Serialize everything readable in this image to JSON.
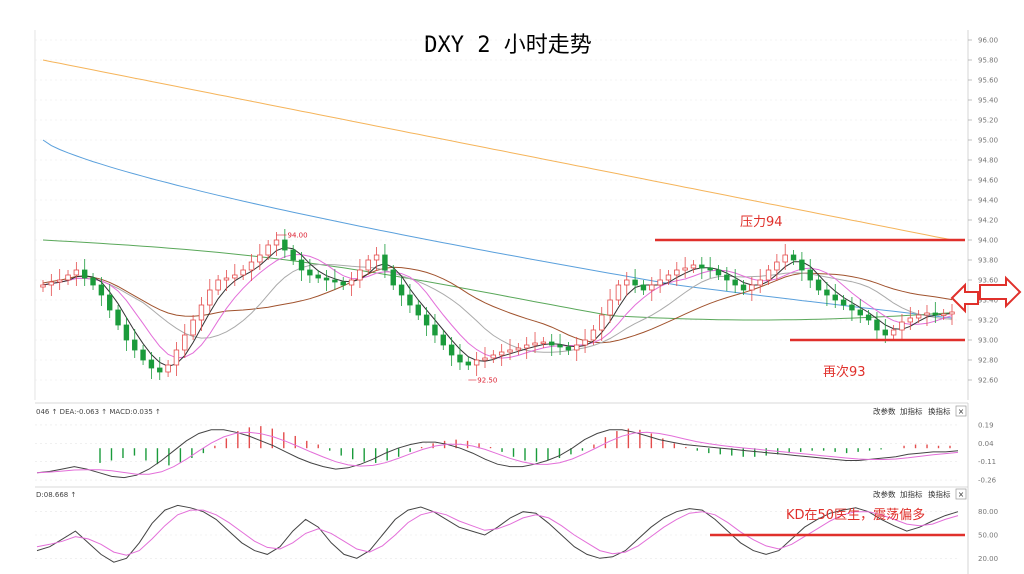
{
  "title": "DXY 2 小时走势",
  "colors": {
    "up": "#e44c4c",
    "down": "#1a9b3b",
    "ma_orange": "#f5b45a",
    "ma_blue": "#5aa0dc",
    "ma_green": "#5aa85a",
    "ma_brown": "#a0522d",
    "ma_pink": "#e36fd9",
    "ma_black": "#333333",
    "ma_grey": "#aaaaaa",
    "annotation": "#e0302b",
    "grid": "#e8e8e8"
  },
  "chart_data": {
    "type": "candlestick",
    "ylim": [
      92.4,
      96.1
    ],
    "yticks": [
      "96.00",
      "95.80",
      "95.60",
      "95.40",
      "95.20",
      "95.00",
      "94.80",
      "94.60",
      "94.40",
      "94.20",
      "94.00",
      "93.80",
      "93.60",
      "93.40",
      "93.20",
      "93.00",
      "92.80",
      "92.60"
    ],
    "high_label": "94.00",
    "low_label": "92.50",
    "resistance": {
      "label": "压力94",
      "value": 94.0
    },
    "support": {
      "label": "再次93",
      "value": 93.0
    },
    "ma_long": [
      95.8,
      94.0
    ],
    "ma_mid": [
      95.0,
      93.2
    ],
    "closes": [
      93.55,
      93.58,
      93.6,
      93.65,
      93.7,
      93.62,
      93.55,
      93.45,
      93.3,
      93.15,
      93.0,
      92.9,
      92.8,
      92.72,
      92.68,
      92.75,
      92.9,
      93.05,
      93.2,
      93.35,
      93.5,
      93.6,
      93.62,
      93.65,
      93.7,
      93.78,
      93.85,
      93.95,
      94.0,
      93.9,
      93.8,
      93.7,
      93.65,
      93.62,
      93.6,
      93.58,
      93.55,
      93.6,
      93.7,
      93.8,
      93.85,
      93.7,
      93.55,
      93.45,
      93.35,
      93.25,
      93.15,
      93.05,
      92.95,
      92.85,
      92.78,
      92.75,
      92.8,
      92.82,
      92.85,
      92.88,
      92.9,
      92.92,
      92.95,
      92.97,
      92.98,
      92.95,
      92.93,
      92.9,
      92.95,
      93.0,
      93.1,
      93.25,
      93.4,
      93.55,
      93.6,
      93.55,
      93.5,
      93.55,
      93.6,
      93.65,
      93.7,
      93.72,
      93.75,
      93.72,
      93.7,
      93.65,
      93.6,
      93.55,
      93.5,
      93.55,
      93.6,
      93.7,
      93.78,
      93.85,
      93.8,
      93.7,
      93.6,
      93.5,
      93.45,
      93.4,
      93.35,
      93.3,
      93.25,
      93.2,
      93.1,
      93.05,
      93.1,
      93.18,
      93.22,
      93.25,
      93.27,
      93.25,
      93.26,
      93.28
    ],
    "macd_header": "046  ↑ DEA:-0.063  ↑ MACD:0.035  ↑",
    "macd_yticks": [
      "0.19",
      "0.04",
      "-0.11",
      "-0.26"
    ],
    "macd_hist": [
      -0.12,
      -0.1,
      -0.08,
      -0.06,
      -0.1,
      -0.13,
      -0.14,
      -0.12,
      -0.08,
      -0.04,
      0.02,
      0.08,
      0.14,
      0.17,
      0.18,
      0.16,
      0.13,
      0.1,
      0.06,
      0.03,
      -0.02,
      -0.06,
      -0.09,
      -0.11,
      -0.12,
      -0.1,
      -0.07,
      -0.03,
      0.01,
      0.04,
      0.06,
      0.07,
      0.06,
      0.04,
      0.01,
      -0.03,
      -0.07,
      -0.1,
      -0.11,
      -0.1,
      -0.08,
      -0.05,
      -0.02,
      0.03,
      0.09,
      0.14,
      0.16,
      0.15,
      0.12,
      0.08,
      0.04,
      0.01,
      -0.02,
      -0.04,
      -0.05,
      -0.06,
      -0.07,
      -0.07,
      -0.06,
      -0.05,
      -0.04,
      -0.03,
      -0.02,
      -0.02,
      -0.03,
      -0.04,
      -0.03,
      -0.02,
      -0.01,
      0.0,
      0.02,
      0.03,
      0.03,
      0.02,
      0.02
    ],
    "kd_header": "D:08.668  ↑",
    "kd_yticks": [
      "80.00",
      "50.00",
      "20.00"
    ],
    "kd_annotation": "KD在50医生，震荡偏多",
    "k_values": [
      30,
      35,
      45,
      55,
      40,
      25,
      15,
      20,
      40,
      65,
      82,
      88,
      85,
      80,
      70,
      55,
      40,
      30,
      25,
      35,
      55,
      70,
      60,
      40,
      25,
      20,
      30,
      50,
      70,
      82,
      86,
      80,
      70,
      60,
      55,
      50,
      60,
      72,
      80,
      78,
      65,
      50,
      35,
      25,
      20,
      22,
      30,
      45,
      60,
      72,
      80,
      84,
      82,
      70,
      55,
      40,
      30,
      25,
      30,
      45,
      60,
      70,
      78,
      82,
      85,
      80,
      70,
      62,
      55,
      60,
      68,
      75,
      80
    ],
    "d_values": [
      35,
      38,
      42,
      48,
      45,
      38,
      28,
      24,
      30,
      45,
      62,
      76,
      82,
      82,
      76,
      66,
      54,
      42,
      34,
      32,
      40,
      52,
      58,
      52,
      42,
      32,
      28,
      36,
      50,
      66,
      76,
      80,
      76,
      68,
      62,
      56,
      58,
      64,
      72,
      76,
      72,
      62,
      50,
      40,
      30,
      26,
      28,
      36,
      48,
      60,
      70,
      78,
      80,
      76,
      66,
      54,
      44,
      36,
      32,
      38,
      48,
      58,
      68,
      76,
      80,
      80,
      76,
      70,
      64,
      62,
      64,
      70,
      75
    ],
    "macd_dif": [
      -0.2,
      -0.19,
      -0.17,
      -0.15,
      -0.17,
      -0.2,
      -0.23,
      -0.24,
      -0.22,
      -0.17,
      -0.1,
      -0.02,
      0.06,
      0.12,
      0.15,
      0.15,
      0.13,
      0.1,
      0.06,
      0.02,
      -0.03,
      -0.08,
      -0.12,
      -0.15,
      -0.17,
      -0.16,
      -0.13,
      -0.09,
      -0.04,
      0.0,
      0.03,
      0.05,
      0.05,
      0.03,
      0.0,
      -0.04,
      -0.09,
      -0.13,
      -0.15,
      -0.15,
      -0.13,
      -0.1,
      -0.06,
      0.0,
      0.07,
      0.12,
      0.15,
      0.15,
      0.13,
      0.1,
      0.07,
      0.05,
      0.03,
      0.02,
      0.01,
      0.0,
      -0.01,
      -0.02,
      -0.03,
      -0.04,
      -0.05,
      -0.06,
      -0.07,
      -0.08,
      -0.09,
      -0.1,
      -0.1,
      -0.09,
      -0.08,
      -0.07,
      -0.05,
      -0.04,
      -0.03,
      -0.03,
      -0.02
    ]
  },
  "controls": {
    "param": "改参数",
    "add": "加指标",
    "switch": "换指标",
    "close": "×"
  }
}
